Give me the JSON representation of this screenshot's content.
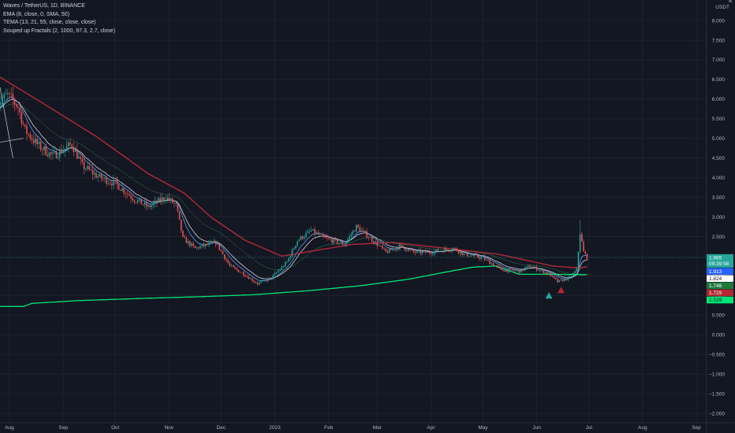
{
  "legend": {
    "symbol_line": "Waves / TetherUS, 1D, BINANCE",
    "ema_line": "EMA (8, close, 0, SMA, 50)",
    "tema_line": "TEMA (13, 21, 55, close, close, close)",
    "fractals_line": "Souped up Fractals (2, 1000, 97.3, 2.7, close)"
  },
  "currency": "USDT",
  "axis_menu": "≡",
  "price_tags": [
    {
      "label": "1.965",
      "sub": "09:39:58",
      "value": 1.965,
      "color": "#26a69a",
      "text_color": "#ffffff"
    },
    {
      "label": "1.913",
      "value": 1.913,
      "color": "#2962ff",
      "text_color": "#ffffff"
    },
    {
      "label": "1.824",
      "value": 1.824,
      "color": "#ffffff",
      "text_color": "#131722"
    },
    {
      "label": "1.746",
      "value": 1.746,
      "color": "#1e7a3c",
      "text_color": "#ffffff"
    },
    {
      "label": "1.729",
      "value": 1.729,
      "color": "#b22833",
      "text_color": "#ffffff"
    },
    {
      "label": "1.529",
      "value": 1.529,
      "color": "#00e676",
      "text_color": "#131722"
    }
  ],
  "colors": {
    "background": "#131722",
    "up": "#26a69a",
    "down": "#ef5350",
    "ema": "#5b9cf6",
    "tema_fast": "#d1d4dc",
    "tema_slow": "#b2283a",
    "fractal_base": "#00e676",
    "grid": "#1e222d"
  },
  "chart_data": {
    "type": "candlestick",
    "y_ticks": [
      "8.000",
      "7.500",
      "7.000",
      "6.500",
      "6.000",
      "5.500",
      "5.000",
      "4.500",
      "4.000",
      "3.500",
      "3.000",
      "2.500",
      "2.000",
      "1.500",
      "1.000",
      "0.500",
      "0.000",
      "−0.500",
      "−1.000",
      "−1.500",
      "−2.000"
    ],
    "ylim": [
      -2.2,
      8.5
    ],
    "x_ticks": [
      "Aug",
      "Sep",
      "Oct",
      "Nov",
      "Dec",
      "2023",
      "Feb",
      "Mar",
      "Apr",
      "May",
      "Jun",
      "Jul",
      "Aug",
      "Sep"
    ],
    "x_tick_dates": [
      "2022-08-01",
      "2022-09-01",
      "2022-10-01",
      "2022-11-01",
      "2022-12-01",
      "2023-01-01",
      "2023-02-01",
      "2023-03-01",
      "2023-04-01",
      "2023-05-01",
      "2023-06-01",
      "2023-07-01",
      "2023-08-01",
      "2023-09-01"
    ],
    "start_date": "2022-07-25",
    "end_date": "2023-06-30",
    "close_anchors": [
      [
        "2022-07-25",
        5.9
      ],
      [
        "2022-07-31",
        6.1
      ],
      [
        "2022-08-06",
        5.8
      ],
      [
        "2022-08-10",
        5.2
      ],
      [
        "2022-08-18",
        4.8
      ],
      [
        "2022-08-26",
        4.55
      ],
      [
        "2022-09-06",
        4.85
      ],
      [
        "2022-09-12",
        4.3
      ],
      [
        "2022-09-22",
        4.0
      ],
      [
        "2022-10-01",
        3.85
      ],
      [
        "2022-10-12",
        3.45
      ],
      [
        "2022-10-20",
        3.25
      ],
      [
        "2022-10-30",
        3.5
      ],
      [
        "2022-11-05",
        3.3
      ],
      [
        "2022-11-09",
        2.45
      ],
      [
        "2022-11-16",
        2.2
      ],
      [
        "2022-11-28",
        2.35
      ],
      [
        "2022-12-06",
        1.75
      ],
      [
        "2022-12-14",
        1.55
      ],
      [
        "2022-12-22",
        1.3
      ],
      [
        "2022-12-30",
        1.45
      ],
      [
        "2023-01-08",
        1.85
      ],
      [
        "2023-01-14",
        2.4
      ],
      [
        "2023-01-22",
        2.65
      ],
      [
        "2023-01-30",
        2.45
      ],
      [
        "2023-02-10",
        2.3
      ],
      [
        "2023-02-17",
        2.75
      ],
      [
        "2023-02-24",
        2.5
      ],
      [
        "2023-03-06",
        2.1
      ],
      [
        "2023-03-14",
        2.25
      ],
      [
        "2023-03-22",
        2.1
      ],
      [
        "2023-04-01",
        2.1
      ],
      [
        "2023-04-14",
        2.2
      ],
      [
        "2023-04-20",
        2.05
      ],
      [
        "2023-05-01",
        1.95
      ],
      [
        "2023-05-12",
        1.65
      ],
      [
        "2023-05-22",
        1.62
      ],
      [
        "2023-05-28",
        1.75
      ],
      [
        "2023-06-08",
        1.55
      ],
      [
        "2023-06-13",
        1.35
      ],
      [
        "2023-06-20",
        1.45
      ],
      [
        "2023-06-24",
        1.65
      ],
      [
        "2023-06-26",
        2.6
      ],
      [
        "2023-06-28",
        2.1
      ],
      [
        "2023-06-30",
        1.965
      ]
    ],
    "tema_slow_anchors": [
      [
        "2022-07-25",
        6.6
      ],
      [
        "2022-08-20",
        5.9
      ],
      [
        "2022-09-20",
        5.05
      ],
      [
        "2022-10-20",
        4.1
      ],
      [
        "2022-11-10",
        3.6
      ],
      [
        "2022-11-25",
        3.0
      ],
      [
        "2022-12-15",
        2.4
      ],
      [
        "2023-01-05",
        2.0
      ],
      [
        "2023-01-25",
        2.15
      ],
      [
        "2023-02-15",
        2.3
      ],
      [
        "2023-03-10",
        2.35
      ],
      [
        "2023-04-10",
        2.2
      ],
      [
        "2023-05-10",
        2.05
      ],
      [
        "2023-06-10",
        1.75
      ],
      [
        "2023-06-25",
        1.7
      ],
      [
        "2023-06-30",
        1.73
      ]
    ],
    "fractal_base_anchors": [
      [
        "2022-07-25",
        0.72
      ],
      [
        "2022-08-09",
        0.72
      ],
      [
        "2022-08-14",
        0.8
      ],
      [
        "2022-09-10",
        0.87
      ],
      [
        "2022-10-20",
        0.93
      ],
      [
        "2022-11-20",
        0.97
      ],
      [
        "2022-12-20",
        1.02
      ],
      [
        "2023-01-20",
        1.12
      ],
      [
        "2023-02-20",
        1.25
      ],
      [
        "2023-03-20",
        1.42
      ],
      [
        "2023-04-10",
        1.6
      ],
      [
        "2023-04-25",
        1.72
      ],
      [
        "2023-05-08",
        1.75
      ],
      [
        "2023-05-22",
        1.54
      ],
      [
        "2023-06-10",
        1.54
      ],
      [
        "2023-06-30",
        1.53
      ]
    ],
    "fractal_markers": [
      {
        "date": "2023-06-08",
        "value": 1.0,
        "kind": "up",
        "color": "#26a69a"
      },
      {
        "date": "2023-06-15",
        "value": 1.14,
        "kind": "down",
        "color": "#b22833"
      }
    ],
    "trend_lines": [
      [
        [
          "2022-07-25",
          6.3
        ],
        [
          "2022-08-03",
          4.5
        ]
      ],
      [
        [
          "2022-07-25",
          4.9
        ],
        [
          "2022-08-09",
          5.0
        ]
      ]
    ]
  }
}
